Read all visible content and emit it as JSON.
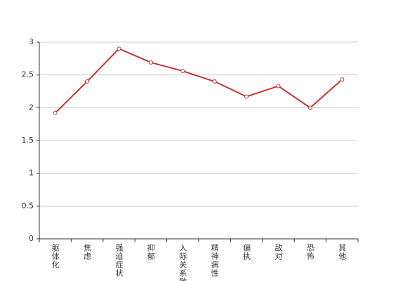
{
  "chart_data": {
    "type": "line",
    "categories": [
      "躯体化",
      "焦虑",
      "强迫症状",
      "抑郁",
      "人际关系敏感",
      "精神病性",
      "偏执",
      "敌对",
      "恐怖",
      "其他"
    ],
    "values": [
      1.92,
      2.4,
      2.9,
      2.69,
      2.56,
      2.4,
      2.17,
      2.33,
      2.0,
      2.43
    ],
    "color": "#c23531",
    "ylim": [
      0,
      3
    ],
    "yticks": [
      0,
      0.5,
      1,
      1.5,
      2,
      2.5,
      3
    ],
    "grid": true
  }
}
